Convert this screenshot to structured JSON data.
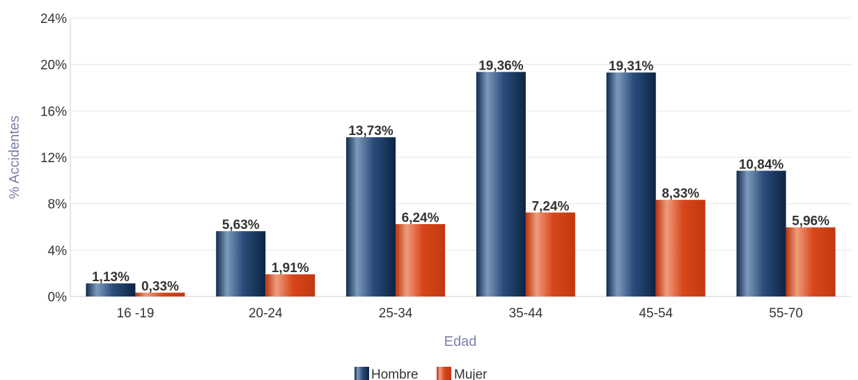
{
  "chart_data": {
    "type": "bar",
    "categories": [
      "16 -19",
      "20-24",
      "25-34",
      "35-44",
      "45-54",
      "55-70"
    ],
    "series": [
      {
        "name": "Hombre",
        "values": [
          1.13,
          5.63,
          13.73,
          19.36,
          19.31,
          10.84
        ],
        "labels": [
          "1,13%",
          "5,63%",
          "13,73%",
          "19,36%",
          "19,31%",
          "10,84%"
        ],
        "color": "#1f3f6b"
      },
      {
        "name": "Mujer",
        "values": [
          0.33,
          1.91,
          6.24,
          7.24,
          8.33,
          5.96
        ],
        "labels": [
          "0,33%",
          "1,91%",
          "6,24%",
          "7,24%",
          "8,33%",
          "5,96%"
        ],
        "color": "#d1401a"
      }
    ],
    "xlabel": "Edad",
    "ylabel": "% Accidentes",
    "ylim": [
      0,
      24
    ],
    "yticks": [
      0,
      4,
      8,
      12,
      16,
      20,
      24
    ],
    "ytick_labels": [
      "0%",
      "4%",
      "8%",
      "12%",
      "16%",
      "20%",
      "24%"
    ],
    "grid": true,
    "legend_position": "bottom-center"
  }
}
